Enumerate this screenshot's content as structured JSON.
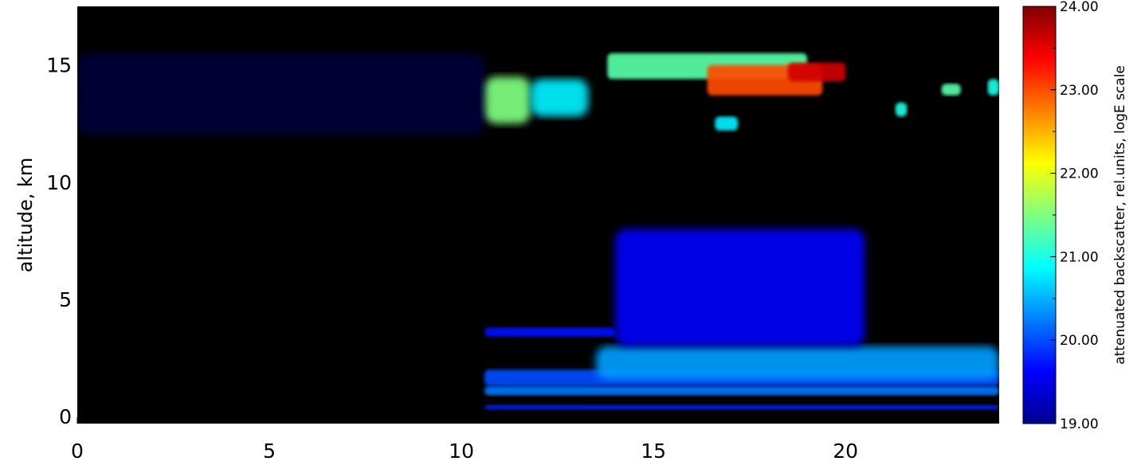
{
  "chart_data": {
    "type": "heatmap",
    "title": "",
    "xlabel": "",
    "ylabel": "altitude,  km",
    "xlim": [
      0,
      24
    ],
    "ylim": [
      -0.3,
      17.5
    ],
    "x_ticks": [
      "0",
      "5",
      "10",
      "15",
      "20"
    ],
    "y_ticks": [
      "0",
      "5",
      "10",
      "15"
    ],
    "colorbar": {
      "label": "attenuated backscatter,  rel.units,  logE scale",
      "range": [
        19.0,
        24.0
      ],
      "ticks": [
        "19.00",
        "20.00",
        "21.00",
        "22.00",
        "23.00",
        "24.00"
      ],
      "colormap": "jet"
    },
    "background_color": "#000000",
    "features": [
      {
        "x_start": 10.6,
        "x_end": 24.0,
        "y_bottom": 0.9,
        "y_top": 1.3,
        "level": 20.2
      },
      {
        "x_start": 10.6,
        "x_end": 24.0,
        "y_bottom": 1.3,
        "y_top": 2.0,
        "level": 20.0
      },
      {
        "x_start": 13.5,
        "x_end": 24.0,
        "y_bottom": 1.6,
        "y_top": 3.0,
        "level": 20.4
      },
      {
        "x_start": 10.6,
        "x_end": 14.0,
        "y_bottom": 3.4,
        "y_top": 3.8,
        "level": 19.7
      },
      {
        "x_start": 14.0,
        "x_end": 20.5,
        "y_bottom": 3.0,
        "y_top": 8.0,
        "level": 19.6
      },
      {
        "x_start": 10.6,
        "x_end": 24.0,
        "y_bottom": 0.3,
        "y_top": 0.5,
        "level": 19.8
      },
      {
        "x_start": 10.6,
        "x_end": 11.8,
        "y_bottom": 12.5,
        "y_top": 14.5,
        "level": 21.5
      },
      {
        "x_start": 11.8,
        "x_end": 13.3,
        "y_bottom": 12.8,
        "y_top": 14.4,
        "level": 20.8
      },
      {
        "x_start": 13.8,
        "x_end": 19.0,
        "y_bottom": 14.4,
        "y_top": 15.5,
        "level": 21.3
      },
      {
        "x_start": 16.4,
        "x_end": 19.4,
        "y_bottom": 13.7,
        "y_top": 15.0,
        "level": 23.0
      },
      {
        "x_start": 18.5,
        "x_end": 20.0,
        "y_bottom": 14.3,
        "y_top": 15.1,
        "level": 23.6
      },
      {
        "x_start": 16.6,
        "x_end": 17.2,
        "y_bottom": 12.2,
        "y_top": 12.8,
        "level": 20.8
      },
      {
        "x_start": 21.3,
        "x_end": 21.6,
        "y_bottom": 12.8,
        "y_top": 13.4,
        "level": 21.0
      },
      {
        "x_start": 22.5,
        "x_end": 23.0,
        "y_bottom": 13.7,
        "y_top": 14.2,
        "level": 21.3
      },
      {
        "x_start": 23.7,
        "x_end": 24.0,
        "y_bottom": 13.7,
        "y_top": 14.4,
        "level": 21.0
      },
      {
        "x_start": 0.0,
        "x_end": 10.6,
        "y_bottom": 12.0,
        "y_top": 15.5,
        "level": 19.1
      }
    ]
  }
}
